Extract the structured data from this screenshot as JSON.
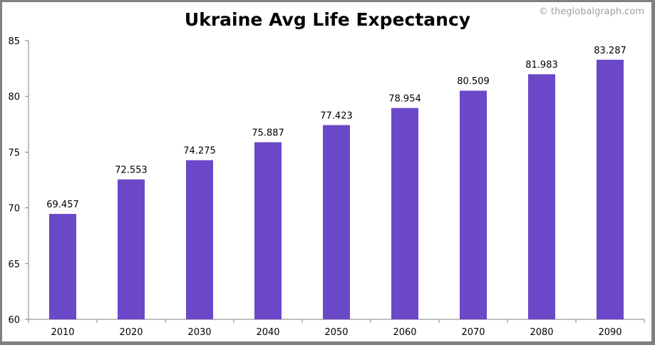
{
  "chart_data": {
    "type": "bar",
    "title": "Ukraine Avg Life Expectancy",
    "watermark": "© theglobalgraph.com",
    "categories": [
      "2010",
      "2020",
      "2030",
      "2040",
      "2050",
      "2060",
      "2070",
      "2080",
      "2090"
    ],
    "values": [
      69.457,
      72.553,
      74.275,
      75.887,
      77.423,
      78.954,
      80.509,
      81.983,
      83.287
    ],
    "data_labels": [
      "69.457",
      "72.553",
      "74.275",
      "75.887",
      "77.423",
      "78.954",
      "80.509",
      "81.983",
      "83.287"
    ],
    "ylim": [
      60,
      85
    ],
    "yticks": [
      60,
      65,
      70,
      75,
      80,
      85
    ],
    "xlabel": "",
    "ylabel": "",
    "grid": false,
    "bar_color": "#6a48c8"
  }
}
